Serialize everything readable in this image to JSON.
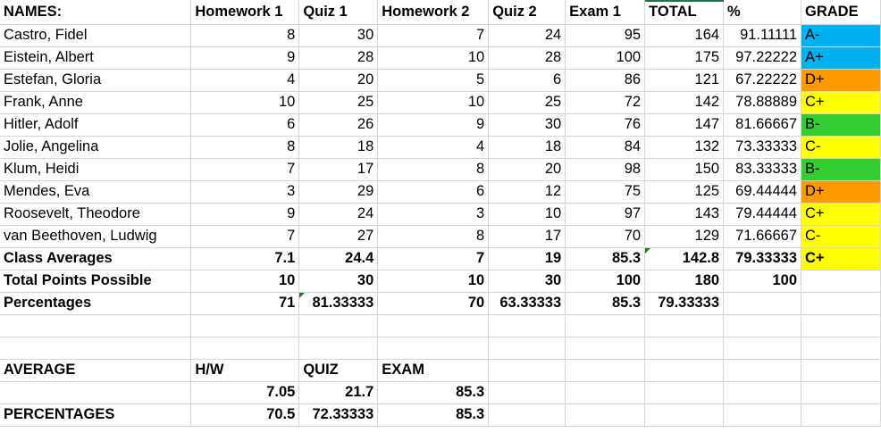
{
  "header": [
    "NAMES:",
    "Homework 1",
    "Quiz 1",
    "Homework 2",
    "Quiz 2",
    "Exam 1",
    "TOTAL",
    "%",
    "GRADE"
  ],
  "students": [
    {
      "name": "Castro, Fidel",
      "values": [
        "8",
        "30",
        "7",
        "24",
        "95",
        "164",
        "91.11111"
      ],
      "grade": "A-",
      "color": "#00b0f0"
    },
    {
      "name": "Eistein, Albert",
      "values": [
        "9",
        "28",
        "10",
        "28",
        "100",
        "175",
        "97.22222"
      ],
      "grade": "A+",
      "color": "#00b0f0"
    },
    {
      "name": "Estefan, Gloria",
      "values": [
        "4",
        "20",
        "5",
        "6",
        "86",
        "121",
        "67.22222"
      ],
      "grade": "D+",
      "color": "#ff9900"
    },
    {
      "name": "Frank, Anne",
      "values": [
        "10",
        "25",
        "10",
        "25",
        "72",
        "142",
        "78.88889"
      ],
      "grade": "C+",
      "color": "#ffff00"
    },
    {
      "name": "Hitler, Adolf",
      "values": [
        "6",
        "26",
        "9",
        "30",
        "76",
        "147",
        "81.66667"
      ],
      "grade": "B-",
      "color": "#33cc33"
    },
    {
      "name": "Jolie, Angelina",
      "values": [
        "8",
        "18",
        "4",
        "18",
        "84",
        "132",
        "73.33333"
      ],
      "grade": "C-",
      "color": "#ffff00"
    },
    {
      "name": "Klum, Heidi",
      "values": [
        "7",
        "17",
        "8",
        "20",
        "98",
        "150",
        "83.33333"
      ],
      "grade": "B-",
      "color": "#33cc33"
    },
    {
      "name": "Mendes, Eva",
      "values": [
        "3",
        "29",
        "6",
        "12",
        "75",
        "125",
        "69.44444"
      ],
      "grade": "D+",
      "color": "#ff9900"
    },
    {
      "name": "Roosevelt, Theodore",
      "values": [
        "9",
        "24",
        "3",
        "10",
        "97",
        "143",
        "79.44444"
      ],
      "grade": "C+",
      "color": "#ffff00"
    },
    {
      "name": "van Beethoven, Ludwig",
      "values": [
        "7",
        "27",
        "8",
        "17",
        "70",
        "129",
        "71.66667"
      ],
      "grade": "C-",
      "color": "#ffff00"
    }
  ],
  "summary": [
    {
      "label": "Class Averages",
      "values": [
        "7.1",
        "24.4",
        "7",
        "19",
        "85.3",
        "142.8",
        "79.33333"
      ],
      "grade": "C+",
      "color": "#ffff00"
    },
    {
      "label": "Total Points Possible",
      "values": [
        "10",
        "30",
        "10",
        "30",
        "100",
        "180",
        "100"
      ],
      "grade": "",
      "color": ""
    },
    {
      "label": "Percentages",
      "values": [
        "71",
        "81.33333",
        "70",
        "63.33333",
        "85.3",
        "79.33333",
        ""
      ],
      "grade": "",
      "color": ""
    }
  ],
  "average_section": {
    "label": "AVERAGE",
    "headers": [
      "H/W",
      "QUIZ",
      "EXAM"
    ],
    "values": [
      "7.05",
      "21.7",
      "85.3"
    ],
    "percent_label": "PERCENTAGES",
    "percents": [
      "70.5",
      "72.33333",
      "85.3"
    ]
  }
}
